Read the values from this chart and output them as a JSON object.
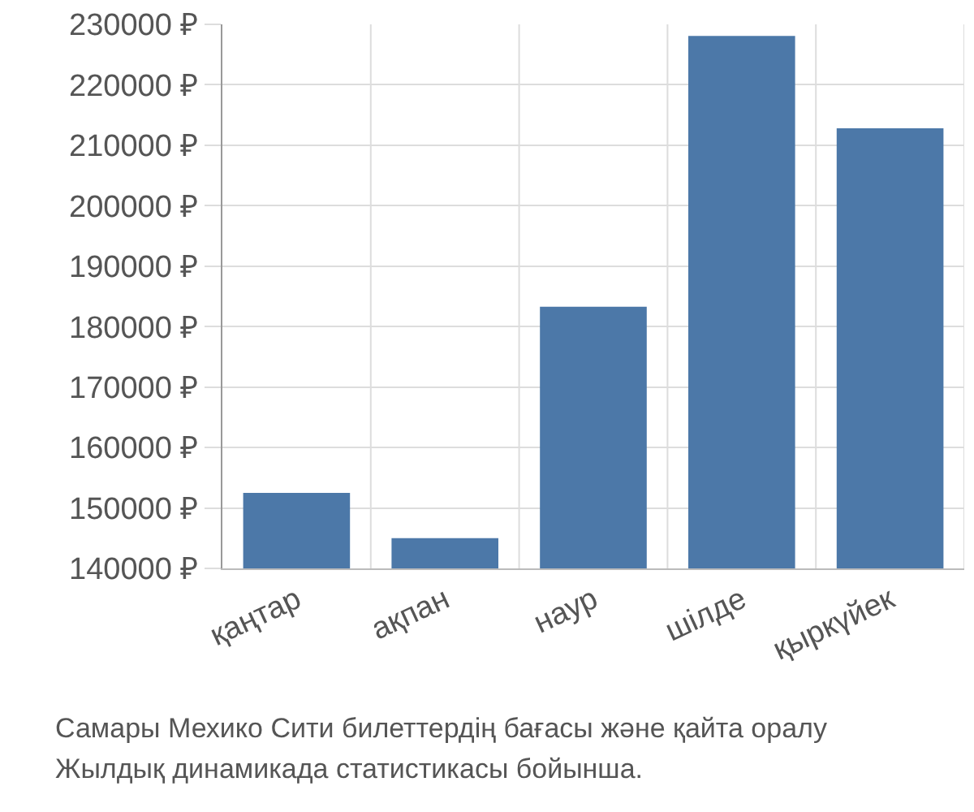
{
  "chart_data": {
    "type": "bar",
    "categories": [
      "қаңтар",
      "ақпан",
      "наур",
      "шілде",
      "қыркүйек"
    ],
    "values": [
      152500,
      145000,
      183300,
      228100,
      212800
    ],
    "color": "#4c78a8",
    "ylim": [
      140000,
      230000
    ],
    "yticks": [
      {
        "value": 140000,
        "label": "140000 ₽"
      },
      {
        "value": 150000,
        "label": "150000 ₽"
      },
      {
        "value": 160000,
        "label": "160000 ₽"
      },
      {
        "value": 170000,
        "label": "170000 ₽"
      },
      {
        "value": 180000,
        "label": "180000 ₽"
      },
      {
        "value": 190000,
        "label": "190000 ₽"
      },
      {
        "value": 200000,
        "label": "200000 ₽"
      },
      {
        "value": 210000,
        "label": "210000 ₽"
      },
      {
        "value": 220000,
        "label": "220000 ₽"
      },
      {
        "value": 230000,
        "label": "230000 ₽"
      }
    ],
    "grid": true,
    "annotations": [
      "Самары Мехико Сити билеттердің бағасы және қайта оралу",
      "Жылдық динамикада статистикасы бойынша."
    ]
  }
}
